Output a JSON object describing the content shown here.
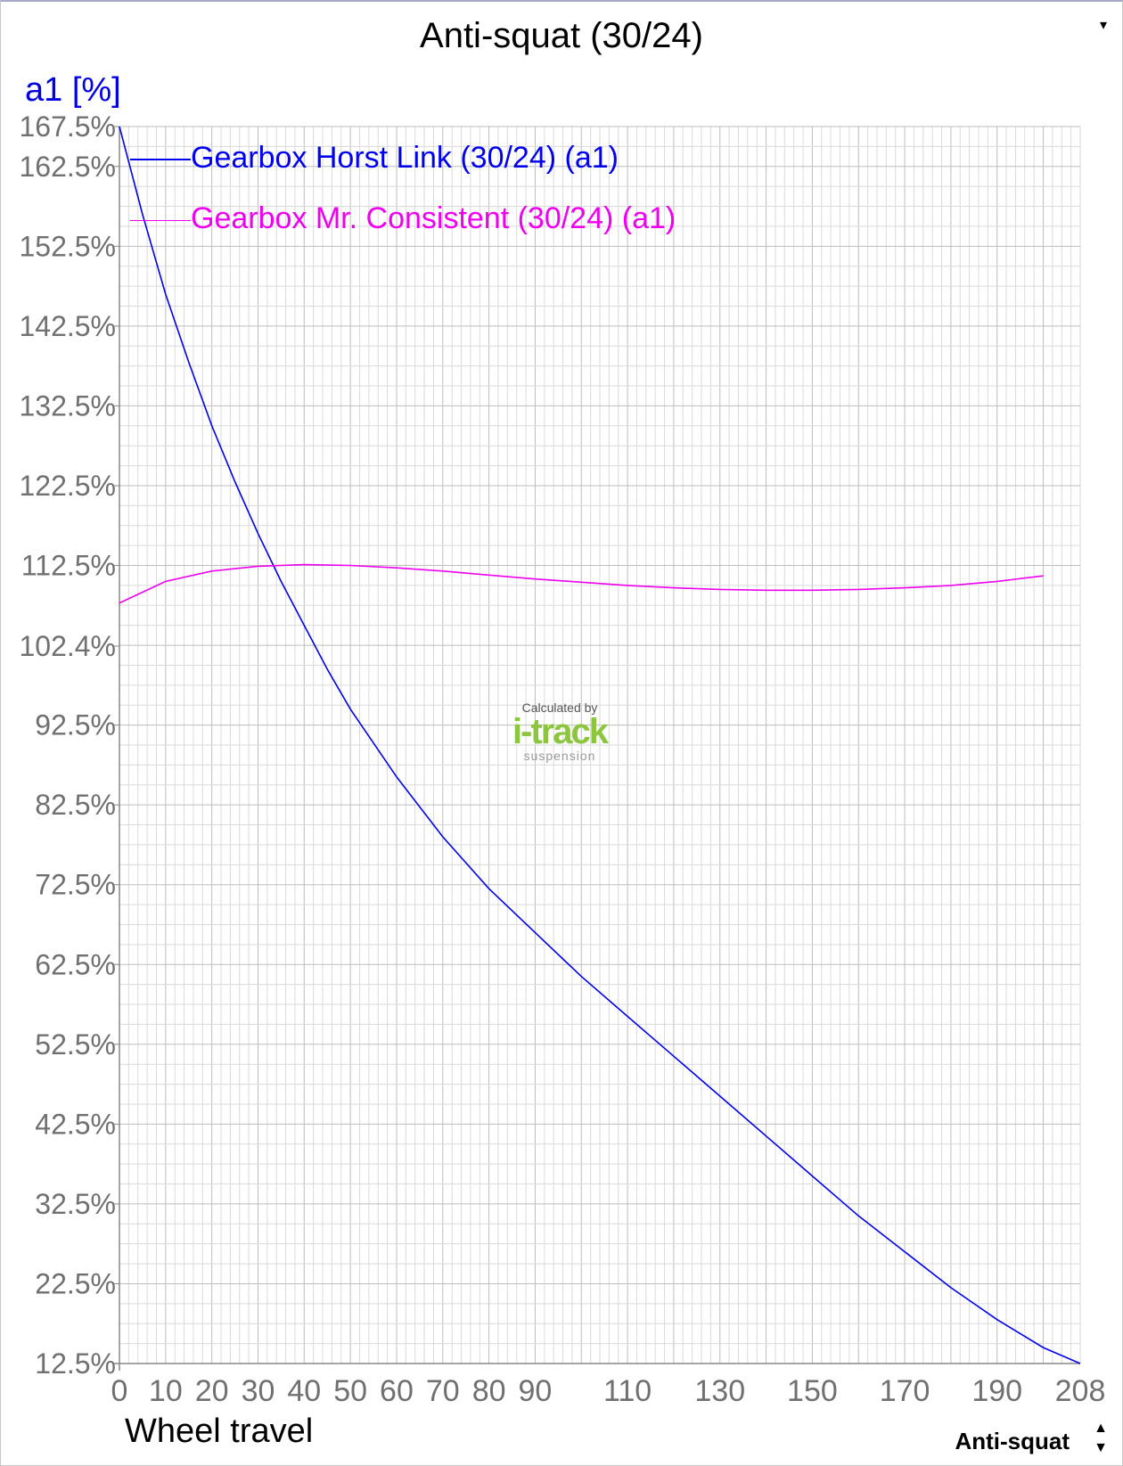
{
  "header": {
    "title": "Anti-squat (30/24)"
  },
  "footer": {
    "mode_label": "Anti-squat"
  },
  "chart_data": {
    "type": "line",
    "title": "Anti-squat (30/24)",
    "xlabel": "Wheel travel",
    "ylabel": "a1 [%]",
    "xlim": [
      0,
      208
    ],
    "ylim": [
      12.5,
      167.5
    ],
    "grid": true,
    "legend_position": "top-left",
    "x_ticks": [
      "0",
      "10",
      "20",
      "30",
      "40",
      "50",
      "60",
      "70",
      "80",
      "90",
      "110",
      "130",
      "150",
      "170",
      "190",
      "208"
    ],
    "x_tick_values": [
      0,
      10,
      20,
      30,
      40,
      50,
      60,
      70,
      80,
      90,
      110,
      130,
      150,
      170,
      190,
      208
    ],
    "y_ticks": [
      "167.5%",
      "162.5%",
      "152.5%",
      "142.5%",
      "132.5%",
      "122.5%",
      "112.5%",
      "102.4%",
      "92.5%",
      "82.5%",
      "72.5%",
      "62.5%",
      "52.5%",
      "42.5%",
      "32.5%",
      "22.5%",
      "12.5%"
    ],
    "y_tick_values": [
      167.5,
      162.5,
      152.5,
      142.5,
      132.5,
      122.5,
      112.5,
      102.4,
      92.5,
      82.5,
      72.5,
      62.5,
      52.5,
      42.5,
      32.5,
      22.5,
      12.5
    ],
    "series": [
      {
        "name": "Gearbox Horst Link (30/24) (a1)",
        "color": "#0000ee",
        "x": [
          0,
          5,
          10,
          15,
          20,
          25,
          30,
          35,
          40,
          45,
          50,
          60,
          70,
          80,
          90,
          100,
          110,
          120,
          130,
          140,
          150,
          160,
          170,
          180,
          190,
          200,
          208
        ],
        "y": [
          167.5,
          156.5,
          146.5,
          138.0,
          130.0,
          123.0,
          116.5,
          110.5,
          105.0,
          99.5,
          94.5,
          86.0,
          78.5,
          72.0,
          66.5,
          61.0,
          56.0,
          51.0,
          46.0,
          41.0,
          36.0,
          31.0,
          26.5,
          22.0,
          18.0,
          14.5,
          12.5
        ]
      },
      {
        "name": "Gearbox Mr. Consistent (30/24) (a1)",
        "color": "#ee00ee",
        "x": [
          0,
          10,
          20,
          30,
          40,
          50,
          60,
          70,
          80,
          90,
          100,
          110,
          120,
          130,
          140,
          150,
          160,
          170,
          180,
          190,
          200
        ],
        "y": [
          107.8,
          110.5,
          111.8,
          112.4,
          112.6,
          112.5,
          112.2,
          111.8,
          111.3,
          110.8,
          110.4,
          110.0,
          109.7,
          109.5,
          109.4,
          109.4,
          109.5,
          109.7,
          110.0,
          110.5,
          111.2
        ]
      }
    ],
    "watermark": {
      "line1": "Calculated by",
      "brand": "i-track",
      "line3": "suspension"
    }
  }
}
